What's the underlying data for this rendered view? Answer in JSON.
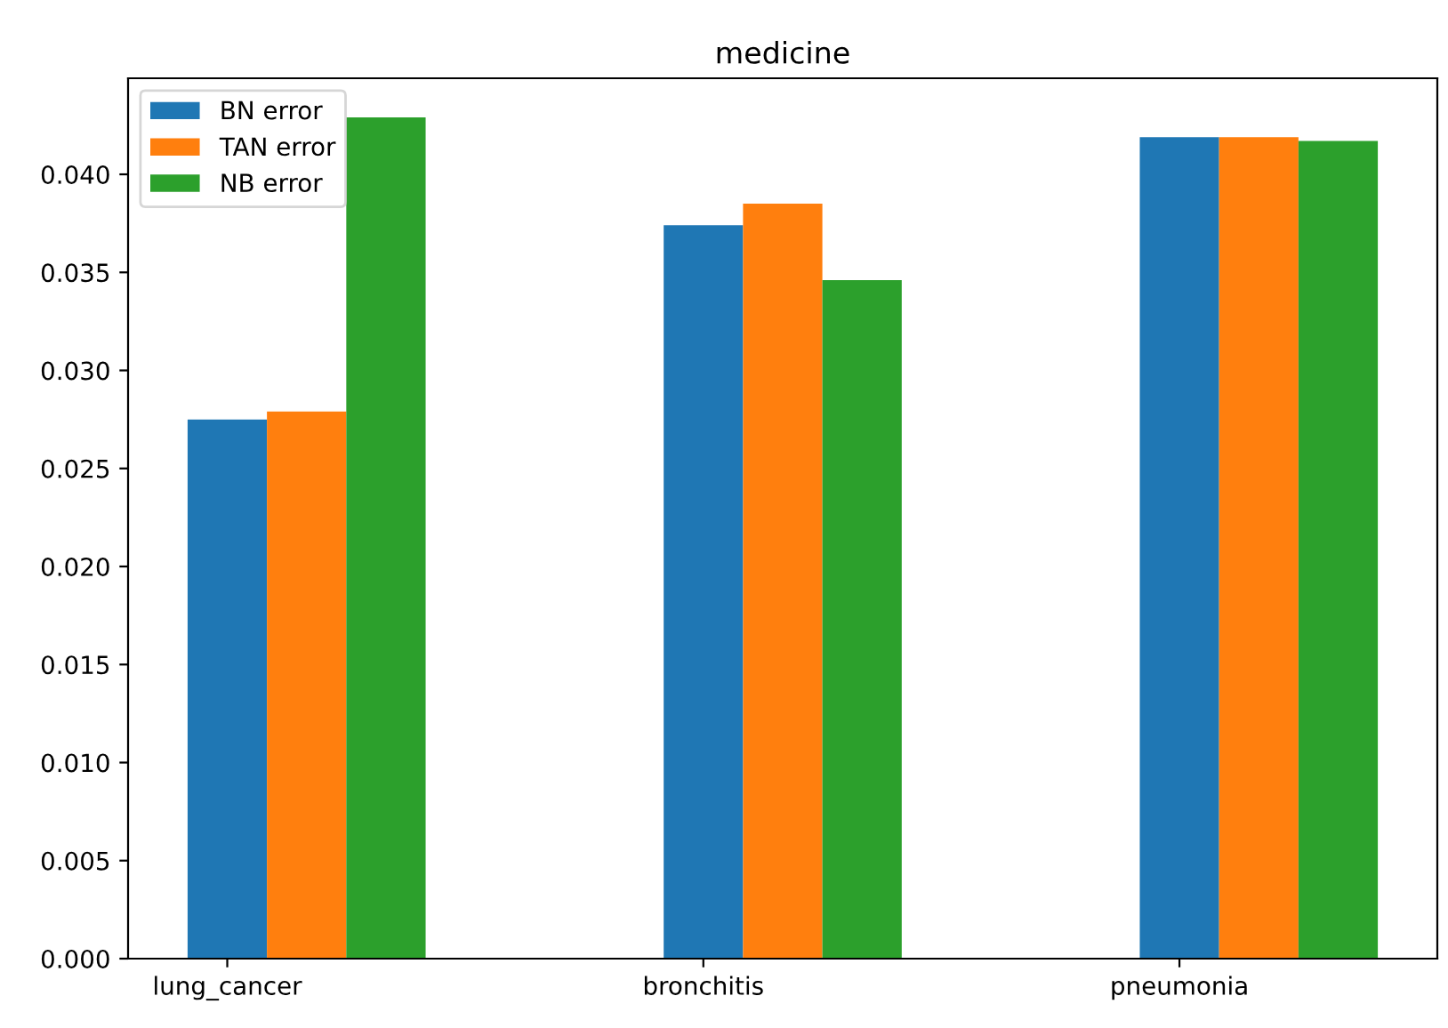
{
  "chart_data": {
    "type": "bar",
    "title": "medicine",
    "categories": [
      "lung_cancer",
      "bronchitis",
      "pneumonia"
    ],
    "series": [
      {
        "name": "BN error",
        "color": "#1f77b4",
        "values": [
          0.0275,
          0.0374,
          0.0419
        ]
      },
      {
        "name": "TAN error",
        "color": "#ff7f0e",
        "values": [
          0.0279,
          0.0385,
          0.0419
        ]
      },
      {
        "name": "NB error",
        "color": "#2ca02c",
        "values": [
          0.0429,
          0.0346,
          0.0417
        ]
      }
    ],
    "ylim": [
      0,
      0.0449
    ],
    "yticks": [
      {
        "value": 0,
        "label": "0.000"
      },
      {
        "value": 0.005,
        "label": "0.005"
      },
      {
        "value": 0.01,
        "label": "0.010"
      },
      {
        "value": 0.015,
        "label": "0.015"
      },
      {
        "value": 0.02,
        "label": "0.020"
      },
      {
        "value": 0.025,
        "label": "0.025"
      },
      {
        "value": 0.03,
        "label": "0.030"
      },
      {
        "value": 0.035,
        "label": "0.035"
      },
      {
        "value": 0.04,
        "label": "0.040"
      }
    ],
    "grid": false,
    "legend": "top left"
  }
}
